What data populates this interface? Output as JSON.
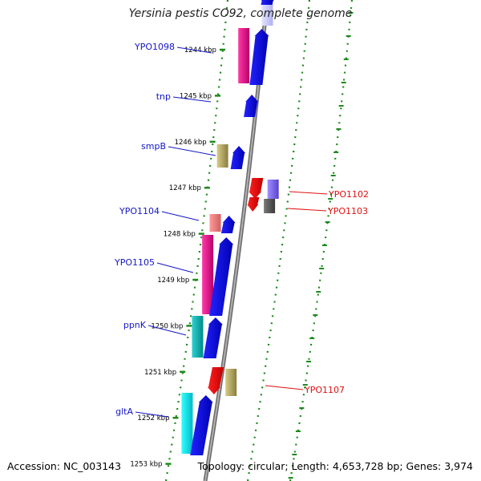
{
  "title": "Yersinia pestis CO92, complete genome",
  "footer": {
    "accession": "Accession: NC_003143",
    "summary": "Topology: circular; Length: 4,653,728 bp; Genes: 3,974"
  },
  "colors": {
    "backbone": "#8a8a8a",
    "dotted_track": "#1d8a1d",
    "left_label": "#1515c8",
    "right_label": "#e01010",
    "forward_cds": "#0a0ae0"
  },
  "ticks": [
    {
      "kb": 1244,
      "label": "1244 kbp"
    },
    {
      "kb": 1245,
      "label": "1245 kbp"
    },
    {
      "kb": 1246,
      "label": "1246 kbp"
    },
    {
      "kb": 1247,
      "label": "1247 kbp"
    },
    {
      "kb": 1248,
      "label": "1248 kbp"
    },
    {
      "kb": 1249,
      "label": "1249 kbp"
    },
    {
      "kb": 1250,
      "label": "1250 kbp"
    },
    {
      "kb": 1251,
      "label": "1251 kbp"
    },
    {
      "kb": 1252,
      "label": "1252 kbp"
    },
    {
      "kb": 1253,
      "label": "1253 kbp"
    }
  ],
  "gene_labels": {
    "left": [
      "YPO1098",
      "tnp",
      "smpB",
      "YPO1104",
      "YPO1105",
      "ppnK",
      "gltA"
    ],
    "right": [
      "YPO1102",
      "YPO1103",
      "YPO1107"
    ]
  }
}
